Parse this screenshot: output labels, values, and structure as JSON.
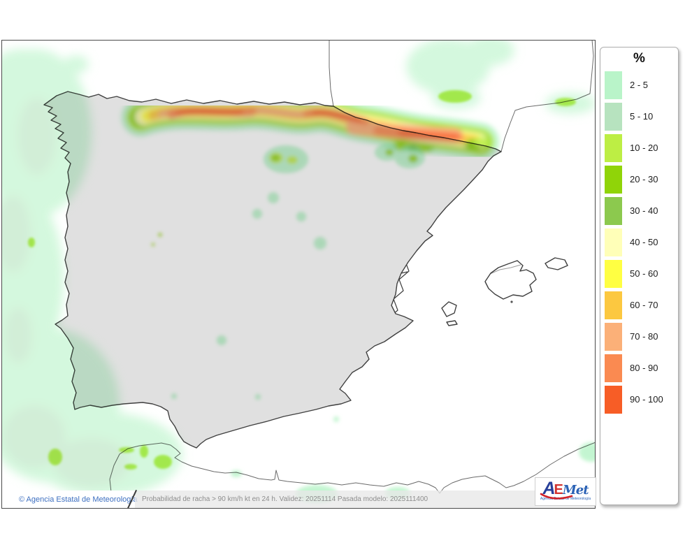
{
  "legend": {
    "title": "%",
    "ranges": [
      {
        "label": "2 - 5",
        "color": "#b9f4c9"
      },
      {
        "label": "5 - 10",
        "color": "#b7e3bf"
      },
      {
        "label": "10 - 20",
        "color": "#bdee44"
      },
      {
        "label": "20 - 30",
        "color": "#90d408"
      },
      {
        "label": "30 - 40",
        "color": "#8cc94e"
      },
      {
        "label": "40 - 50",
        "color": "#ffffb8"
      },
      {
        "label": "50 - 60",
        "color": "#ffff42"
      },
      {
        "label": "60 - 70",
        "color": "#fcc840"
      },
      {
        "label": "70 - 80",
        "color": "#fbb078"
      },
      {
        "label": "80 - 90",
        "color": "#fa8a51"
      },
      {
        "label": "90 - 100",
        "color": "#f75d26"
      }
    ]
  },
  "footer": {
    "copyright": "© Agencia Estatal de Meteorología",
    "model_info": "Probabilidad de racha > 90 km/h kt en 24 h. Validez: 20251114 Pasada modelo: 2025111400"
  },
  "logo": {
    "letter_a": "A",
    "letter_e": "E",
    "letters_met": "Met",
    "subtitle": "Agencia Estatal de Meteorología"
  }
}
